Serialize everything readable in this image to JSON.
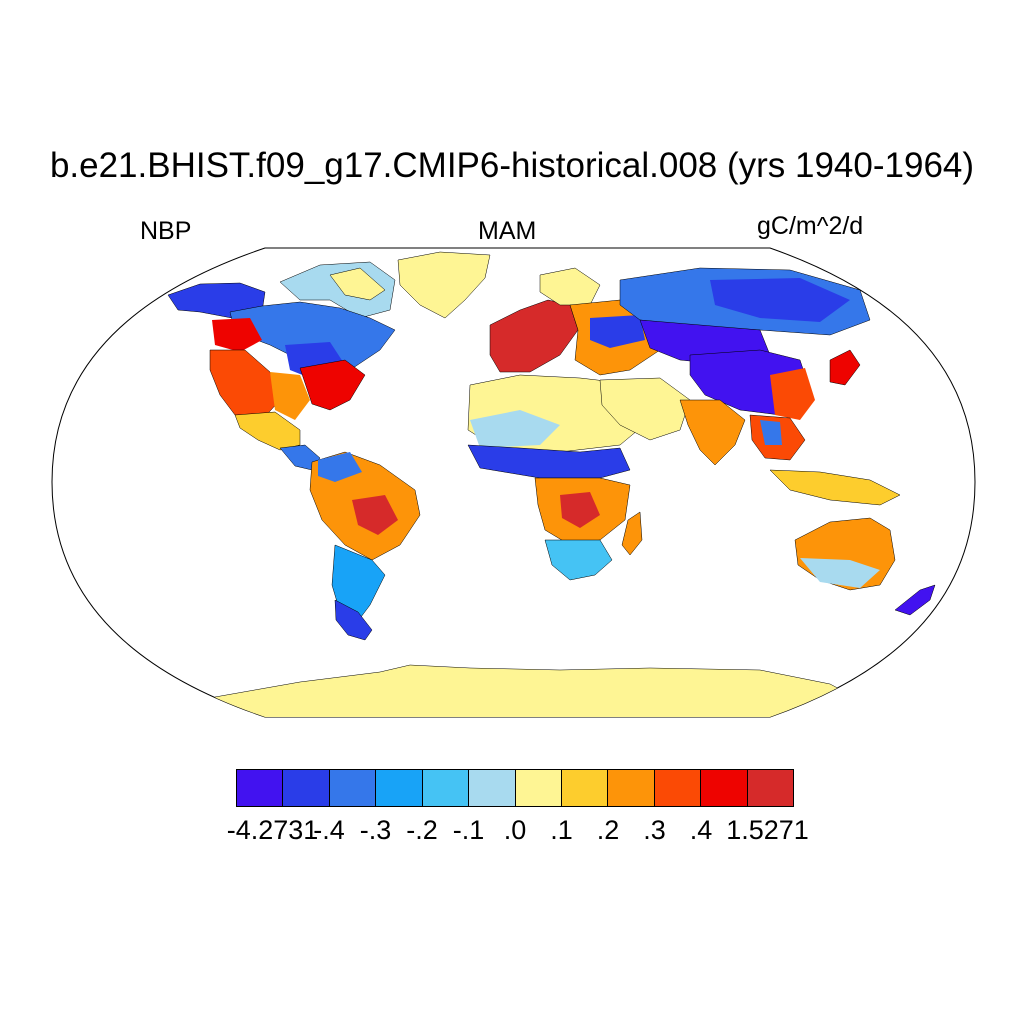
{
  "title": "b.e21.BHIST.f09_g17.CMIP6-historical.008 (yrs 1940-1964)",
  "variable": "NBP",
  "season": "MAM",
  "units": "gC/m^2/d",
  "colorbar": {
    "colors": [
      "#4212f0",
      "#2a3de8",
      "#3577ea",
      "#18a3f7",
      "#45c3f4",
      "#a8daef",
      "#fef594",
      "#fdcd2d",
      "#fd9409",
      "#fb4a05",
      "#ee0300",
      "#d62a2a"
    ],
    "labels": [
      "-4.2731",
      "-.4",
      "-.3",
      "-.2",
      "-.1",
      ".0",
      ".1",
      ".2",
      ".3",
      ".4",
      "1.5271"
    ]
  },
  "map": {
    "projection": "Robinson",
    "regions": [
      {
        "name": "antarctica",
        "color": "#fef594"
      },
      {
        "name": "greenland",
        "color": "#fef594"
      },
      {
        "name": "arctic-canada",
        "color": "#a8daef"
      },
      {
        "name": "alaska",
        "color": "#2a3de8"
      },
      {
        "name": "western-usa",
        "color": "#fb4a05"
      },
      {
        "name": "canada-band",
        "color": "#2a3de8"
      },
      {
        "name": "eastern-usa",
        "color": "#ee0300"
      },
      {
        "name": "mexico",
        "color": "#fdcd2d"
      },
      {
        "name": "central-america",
        "color": "#3577ea"
      },
      {
        "name": "amazon",
        "color": "#fd9409"
      },
      {
        "name": "southern-south-america",
        "color": "#18a3f7"
      },
      {
        "name": "patagonia",
        "color": "#2a3de8"
      },
      {
        "name": "western-europe",
        "color": "#d62a2a"
      },
      {
        "name": "eastern-europe",
        "color": "#fd9409"
      },
      {
        "name": "north-africa",
        "color": "#fef594"
      },
      {
        "name": "sahel",
        "color": "#2a3de8"
      },
      {
        "name": "central-africa",
        "color": "#fd9409"
      },
      {
        "name": "southern-africa",
        "color": "#45c3f4"
      },
      {
        "name": "madagascar",
        "color": "#fd9409"
      },
      {
        "name": "arabia",
        "color": "#fef594"
      },
      {
        "name": "siberia",
        "color": "#3577ea"
      },
      {
        "name": "central-asia",
        "color": "#4212f0"
      },
      {
        "name": "india",
        "color": "#fd9409"
      },
      {
        "name": "china",
        "color": "#4212f0"
      },
      {
        "name": "southeast-asia",
        "color": "#fb4a05"
      },
      {
        "name": "japan",
        "color": "#ee0300"
      },
      {
        "name": "indonesia",
        "color": "#fdcd2d"
      },
      {
        "name": "australia",
        "color": "#fd9409"
      },
      {
        "name": "new-zealand",
        "color": "#4212f0"
      }
    ]
  }
}
